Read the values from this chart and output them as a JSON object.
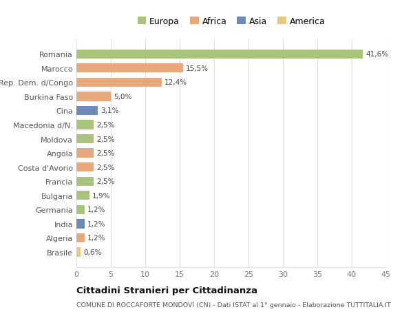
{
  "countries": [
    "Brasile",
    "Algeria",
    "India",
    "Germania",
    "Bulgaria",
    "Francia",
    "Costa d'Avorio",
    "Angola",
    "Moldova",
    "Macedonia d/N.",
    "Cina",
    "Burkina Faso",
    "Rep. Dem. d/Congo",
    "Marocco",
    "Romania"
  ],
  "values": [
    0.6,
    1.2,
    1.2,
    1.2,
    1.9,
    2.5,
    2.5,
    2.5,
    2.5,
    2.5,
    3.1,
    5.0,
    12.4,
    15.5,
    41.6
  ],
  "labels": [
    "0,6%",
    "1,2%",
    "1,2%",
    "1,2%",
    "1,9%",
    "2,5%",
    "2,5%",
    "2,5%",
    "2,5%",
    "2,5%",
    "3,1%",
    "5,0%",
    "12,4%",
    "15,5%",
    "41,6%"
  ],
  "colors": [
    "#e8c97e",
    "#e8a87c",
    "#6b8ab5",
    "#a8c47a",
    "#a8c47a",
    "#a8c47a",
    "#e8a87c",
    "#e8a87c",
    "#a8c47a",
    "#a8c47a",
    "#6b8ab5",
    "#e8a87c",
    "#e8a87c",
    "#e8a87c",
    "#a8c47a"
  ],
  "continent_colors": {
    "Europa": "#a8c47a",
    "Africa": "#e8a87c",
    "Asia": "#6b8ab5",
    "America": "#e8c97e"
  },
  "title1": "Cittadini Stranieri per Cittadinanza",
  "title2": "COMUNE DI ROCCAFORTE MONDOVÌ (CN) - Dati ISTAT al 1° gennaio - Elaborazione TUTTITALIA.IT",
  "xlim": [
    0,
    45
  ],
  "xticks": [
    0,
    5,
    10,
    15,
    20,
    25,
    30,
    35,
    40,
    45
  ],
  "background_color": "#ffffff",
  "bar_height": 0.65,
  "grid_color": "#dddddd"
}
